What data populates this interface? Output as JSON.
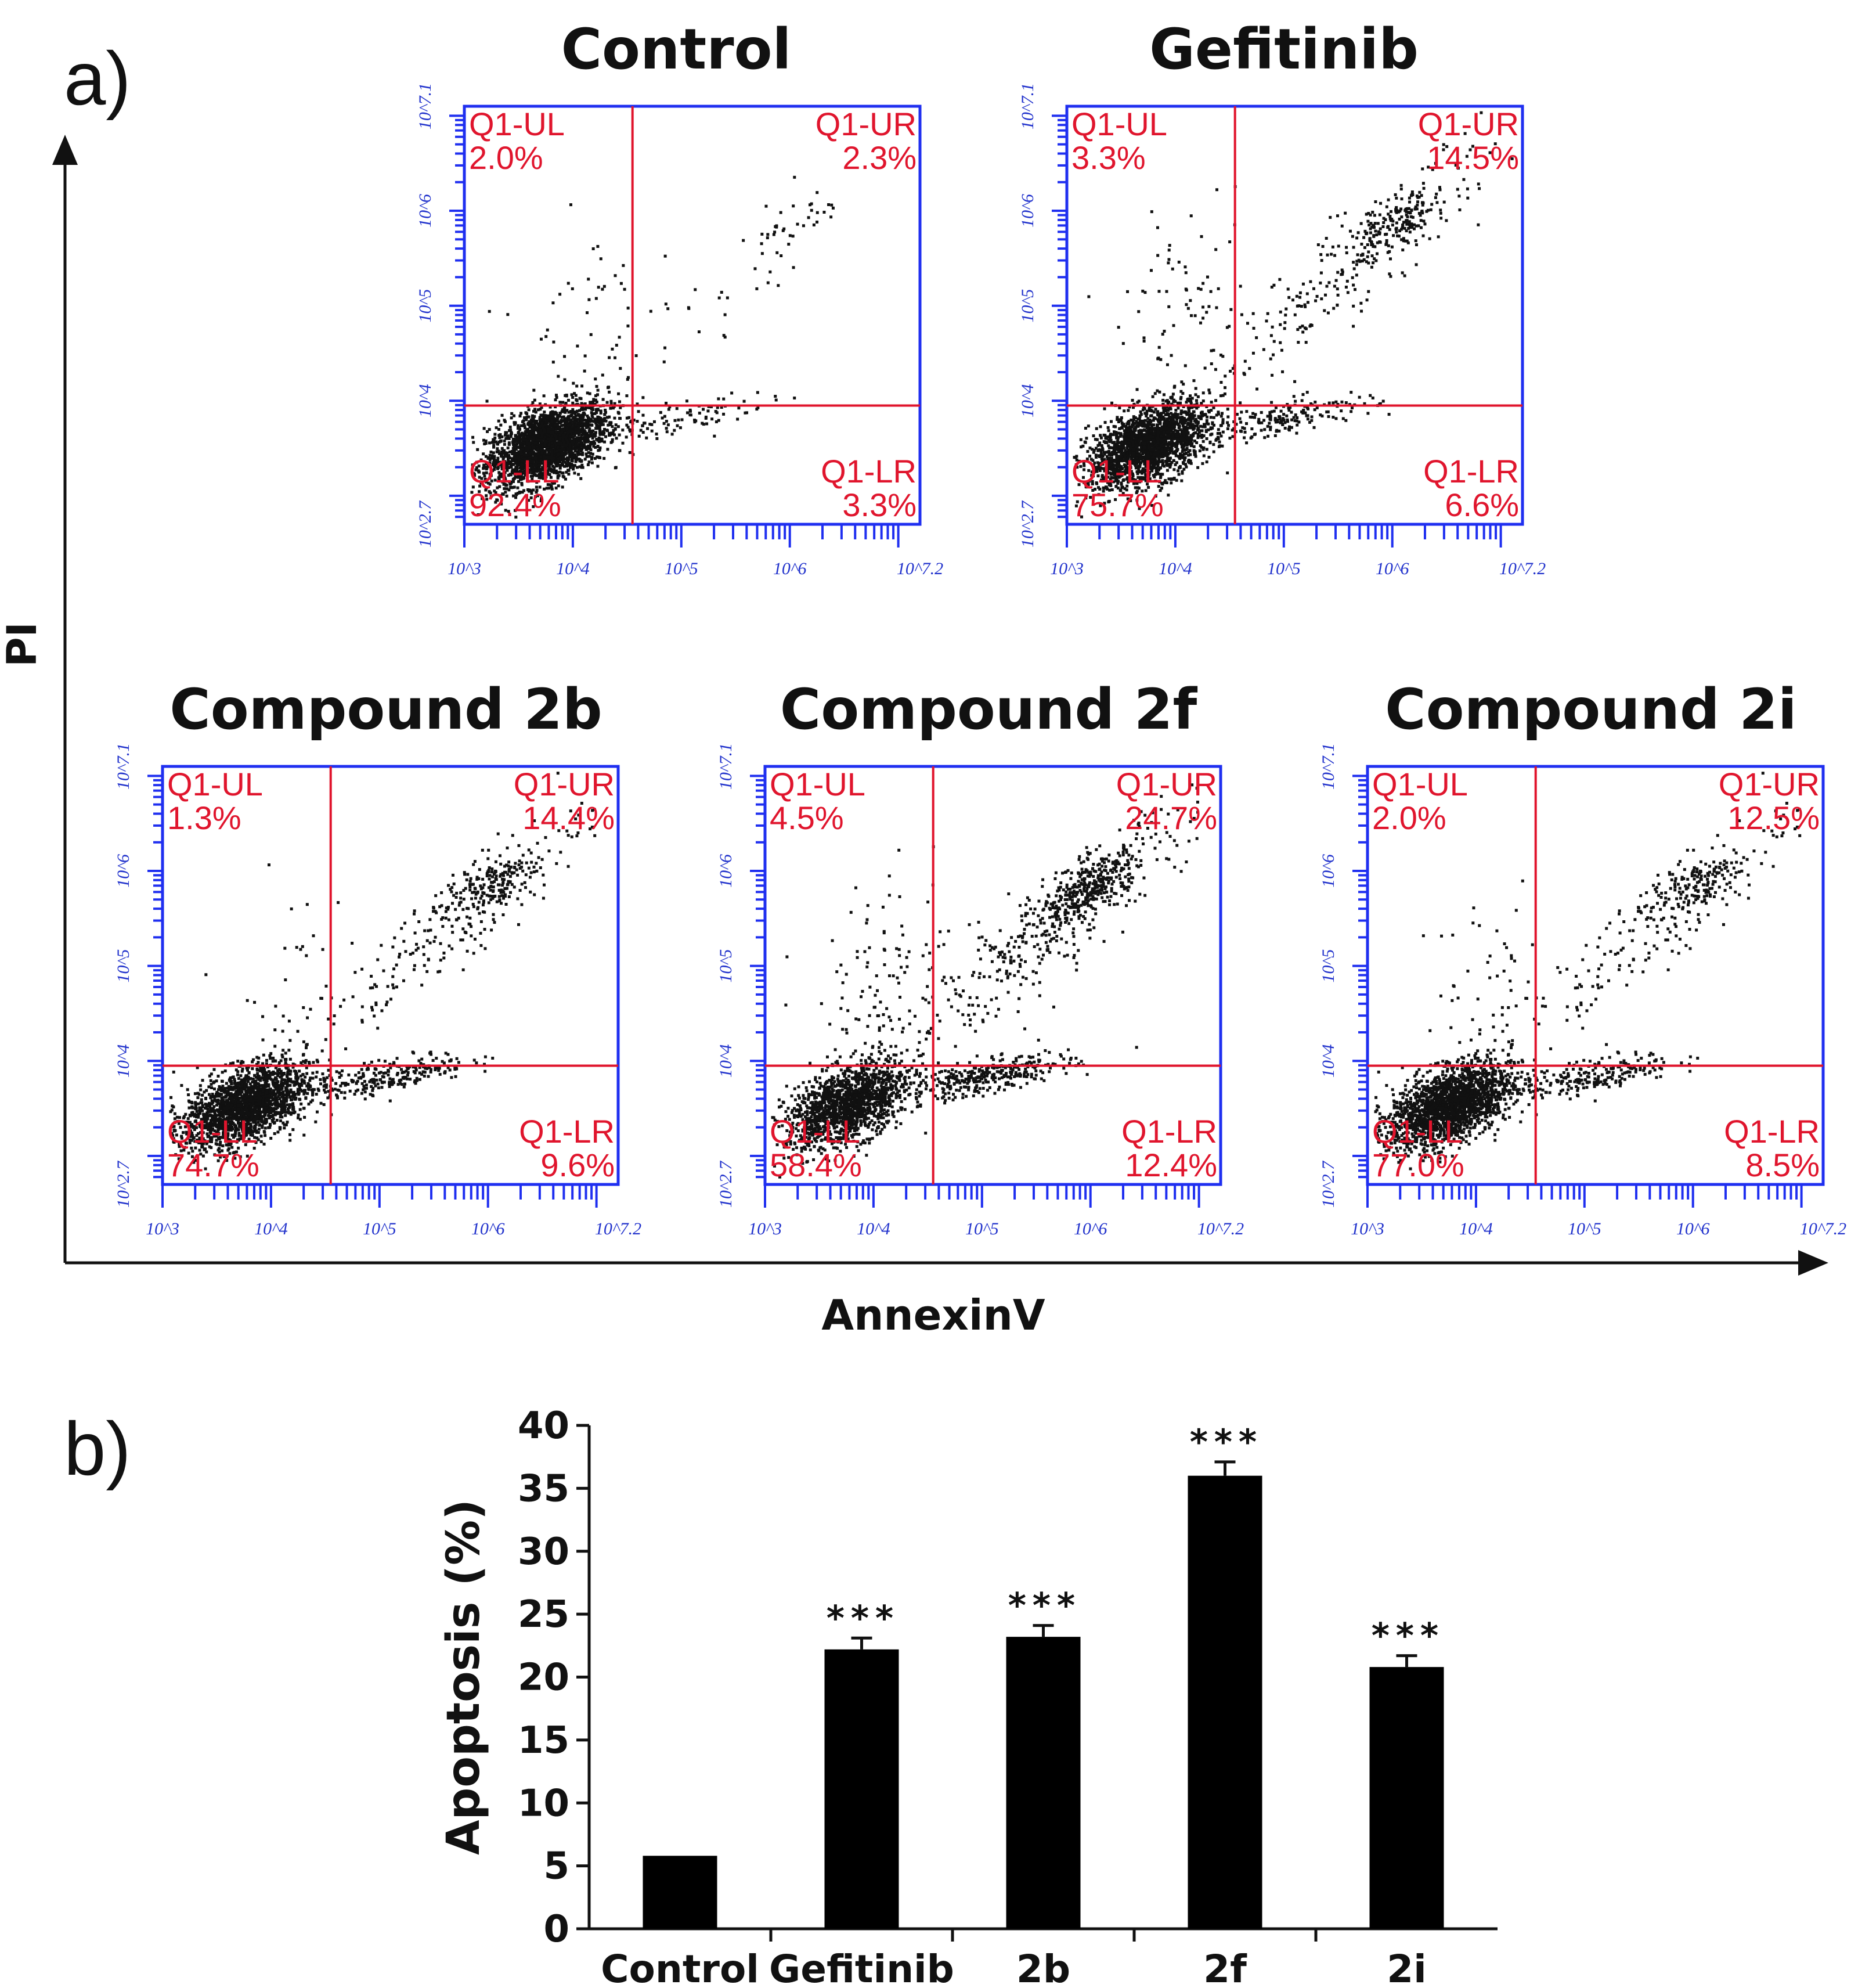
{
  "colors": {
    "plot_frame": "#1f2ff0",
    "gate": "#e0152d",
    "dots": "#111111",
    "bars": "#000000",
    "text": "#111111"
  },
  "panel_a": {
    "letter": "a)",
    "y_axis_label": "PI",
    "x_axis_label": "AnnexinV"
  },
  "panel_b": {
    "letter": "b)"
  },
  "chart_data": [
    {
      "type": "scatter",
      "title": "Control",
      "xlabel": "AnnexinV",
      "ylabel": "PI",
      "x_scale": "log10",
      "y_scale": "log10",
      "xlim": [
        3,
        7.2
      ],
      "ylim": [
        2.7,
        7.1
      ],
      "x_ticks": [
        3,
        4,
        5,
        6,
        7.2
      ],
      "x_tick_labels": [
        "10^3",
        "10^4",
        "10^5",
        "10^6",
        "10^7.2"
      ],
      "y_ticks": [
        2.7,
        4,
        5,
        6,
        7.1
      ],
      "y_tick_labels": [
        "10^2.7",
        "10^4",
        "10^5",
        "10^6",
        "10^7.1"
      ],
      "gate": {
        "x": 4.55,
        "y": 3.95
      },
      "quadrants": [
        {
          "name": "Q1-UL",
          "value": "2.0%"
        },
        {
          "name": "Q1-UR",
          "value": "2.3%"
        },
        {
          "name": "Q1-LL",
          "value": "92.4%"
        },
        {
          "name": "Q1-LR",
          "value": "3.3%"
        }
      ]
    },
    {
      "type": "scatter",
      "title": "Gefitinib",
      "xlabel": "AnnexinV",
      "ylabel": "PI",
      "x_scale": "log10",
      "y_scale": "log10",
      "xlim": [
        3,
        7.2
      ],
      "ylim": [
        2.7,
        7.1
      ],
      "x_ticks": [
        3,
        4,
        5,
        6,
        7.2
      ],
      "x_tick_labels": [
        "10^3",
        "10^4",
        "10^5",
        "10^6",
        "10^7.2"
      ],
      "y_ticks": [
        2.7,
        4,
        5,
        6,
        7.1
      ],
      "y_tick_labels": [
        "10^2.7",
        "10^4",
        "10^5",
        "10^6",
        "10^7.1"
      ],
      "gate": {
        "x": 4.55,
        "y": 3.95
      },
      "quadrants": [
        {
          "name": "Q1-UL",
          "value": "3.3%"
        },
        {
          "name": "Q1-UR",
          "value": "14.5%"
        },
        {
          "name": "Q1-LL",
          "value": "75.7%"
        },
        {
          "name": "Q1-LR",
          "value": "6.6%"
        }
      ]
    },
    {
      "type": "scatter",
      "title": "Compound 2b",
      "xlabel": "AnnexinV",
      "ylabel": "PI",
      "x_scale": "log10",
      "y_scale": "log10",
      "xlim": [
        3,
        7.2
      ],
      "ylim": [
        2.7,
        7.1
      ],
      "x_ticks": [
        3,
        4,
        5,
        6,
        7.2
      ],
      "x_tick_labels": [
        "10^3",
        "10^4",
        "10^5",
        "10^6",
        "10^7.2"
      ],
      "y_ticks": [
        2.7,
        4,
        5,
        6,
        7.1
      ],
      "y_tick_labels": [
        "10^2.7",
        "10^4",
        "10^5",
        "10^6",
        "10^7.1"
      ],
      "gate": {
        "x": 4.55,
        "y": 3.95
      },
      "quadrants": [
        {
          "name": "Q1-UL",
          "value": "1.3%"
        },
        {
          "name": "Q1-UR",
          "value": "14.4%"
        },
        {
          "name": "Q1-LL",
          "value": "74.7%"
        },
        {
          "name": "Q1-LR",
          "value": "9.6%"
        }
      ]
    },
    {
      "type": "scatter",
      "title": "Compound 2f",
      "xlabel": "AnnexinV",
      "ylabel": "PI",
      "x_scale": "log10",
      "y_scale": "log10",
      "xlim": [
        3,
        7.2
      ],
      "ylim": [
        2.7,
        7.1
      ],
      "x_ticks": [
        3,
        4,
        5,
        6,
        7.2
      ],
      "x_tick_labels": [
        "10^3",
        "10^4",
        "10^5",
        "10^6",
        "10^7.2"
      ],
      "y_ticks": [
        2.7,
        4,
        5,
        6,
        7.1
      ],
      "y_tick_labels": [
        "10^2.7",
        "10^4",
        "10^5",
        "10^6",
        "10^7.1"
      ],
      "gate": {
        "x": 4.55,
        "y": 3.95
      },
      "quadrants": [
        {
          "name": "Q1-UL",
          "value": "4.5%"
        },
        {
          "name": "Q1-UR",
          "value": "24.7%"
        },
        {
          "name": "Q1-LL",
          "value": "58.4%"
        },
        {
          "name": "Q1-LR",
          "value": "12.4%"
        }
      ]
    },
    {
      "type": "scatter",
      "title": "Compound 2i",
      "xlabel": "AnnexinV",
      "ylabel": "PI",
      "x_scale": "log10",
      "y_scale": "log10",
      "xlim": [
        3,
        7.2
      ],
      "ylim": [
        2.7,
        7.1
      ],
      "x_ticks": [
        3,
        4,
        5,
        6,
        7.2
      ],
      "x_tick_labels": [
        "10^3",
        "10^4",
        "10^5",
        "10^6",
        "10^7.2"
      ],
      "y_ticks": [
        2.7,
        4,
        5,
        6,
        7.1
      ],
      "y_tick_labels": [
        "10^2.7",
        "10^4",
        "10^5",
        "10^6",
        "10^7.1"
      ],
      "gate": {
        "x": 4.55,
        "y": 3.95
      },
      "quadrants": [
        {
          "name": "Q1-UL",
          "value": "2.0%"
        },
        {
          "name": "Q1-UR",
          "value": "12.5%"
        },
        {
          "name": "Q1-LL",
          "value": "77.0%"
        },
        {
          "name": "Q1-LR",
          "value": "8.5%"
        }
      ]
    },
    {
      "type": "bar",
      "title": "",
      "xlabel": "",
      "ylabel": "Apoptosis (%)",
      "categories": [
        "Control",
        "Gefitinib",
        "2b",
        "2f",
        "2i"
      ],
      "values": [
        5.8,
        22.2,
        23.2,
        36.0,
        20.8
      ],
      "errors": [
        0.2,
        0.9,
        0.9,
        1.1,
        0.9
      ],
      "significance": [
        "",
        "***",
        "***",
        "***",
        "***"
      ],
      "ylim": [
        0,
        40
      ],
      "yticks": [
        0,
        5,
        10,
        15,
        20,
        25,
        30,
        35,
        40
      ],
      "grid": false
    }
  ]
}
